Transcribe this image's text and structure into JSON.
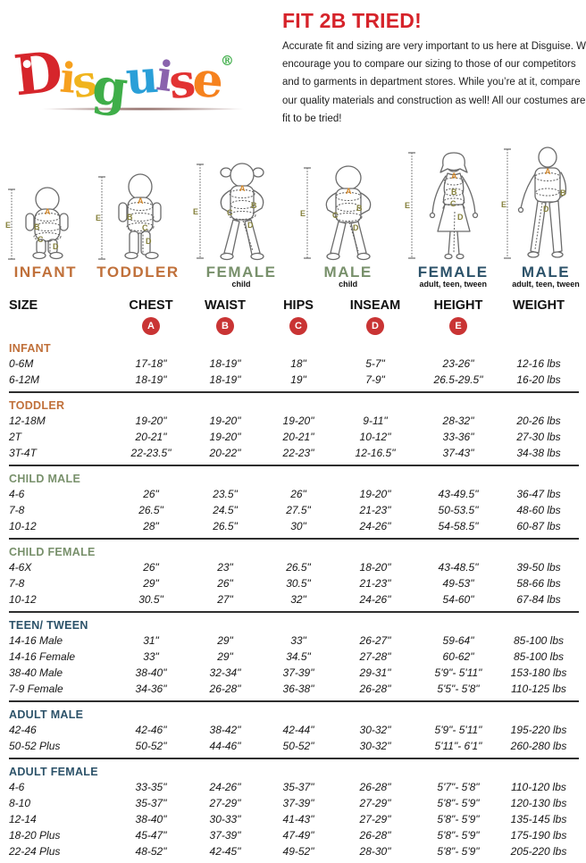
{
  "logo": {
    "letters": [
      {
        "ch": "D",
        "color": "#d6252b"
      },
      {
        "ch": "i",
        "color": "#f6a01e"
      },
      {
        "ch": "s",
        "color": "#f0b41e"
      },
      {
        "ch": "g",
        "color": "#3fae49"
      },
      {
        "ch": "u",
        "color": "#2a9fd8"
      },
      {
        "ch": "i",
        "color": "#8a63ad"
      },
      {
        "ch": "s",
        "color": "#e23333"
      },
      {
        "ch": "e",
        "color": "#f6821e"
      },
      {
        "ch": "®",
        "color": "#3fae49"
      }
    ]
  },
  "intro": {
    "title": "FIT 2B TRIED!",
    "body": "Accurate fit and sizing are very important to us here at Disguise. We encourage you to compare our sizing to those of our competitors and to garments in department stores. While you’re at it, compare our quality materials and construction as well! All our costumes are fit to be tried!"
  },
  "figure_marks": {
    "a": "A",
    "b": "B",
    "c": "C",
    "d": "D",
    "e": "E"
  },
  "figures": [
    {
      "label": "INFANT",
      "sublabel": "",
      "label_color": "#c0703a"
    },
    {
      "label": "TODDLER",
      "sublabel": "",
      "label_color": "#c0703a"
    },
    {
      "label": "FEMALE",
      "sublabel": "child",
      "label_color": "#78906b"
    },
    {
      "label": "MALE",
      "sublabel": "child",
      "label_color": "#78906b"
    },
    {
      "label": "FEMALE",
      "sublabel": "adult, teen, tween",
      "label_color": "#2c5269"
    },
    {
      "label": "MALE",
      "sublabel": "adult, teen, tween",
      "label_color": "#2c5269"
    }
  ],
  "table": {
    "columns": [
      "SIZE",
      "CHEST",
      "WAIST",
      "HIPS",
      "INSEAM",
      "HEIGHT",
      "WEIGHT"
    ],
    "badges": [
      "A",
      "B",
      "C",
      "D",
      "E"
    ],
    "badge_color": "#c93434",
    "sections": [
      {
        "name": "INFANT",
        "color": "#c0703a",
        "rows": [
          {
            "size": "0-6M",
            "values": [
              "17-18\"",
              "18-19\"",
              "18\"",
              "5-7\"",
              "23-26\"",
              "12-16 lbs"
            ]
          },
          {
            "size": "6-12M",
            "values": [
              "18-19\"",
              "18-19\"",
              "19\"",
              "7-9\"",
              "26.5-29.5\"",
              "16-20 lbs"
            ]
          }
        ]
      },
      {
        "name": "TODDLER",
        "color": "#c0703a",
        "rows": [
          {
            "size": "12-18M",
            "values": [
              "19-20\"",
              "19-20\"",
              "19-20\"",
              "9-11\"",
              "28-32\"",
              "20-26 lbs"
            ]
          },
          {
            "size": "2T",
            "values": [
              "20-21\"",
              "19-20\"",
              "20-21\"",
              "10-12\"",
              "33-36\"",
              "27-30 lbs"
            ]
          },
          {
            "size": "3T-4T",
            "values": [
              "22-23.5\"",
              "20-22\"",
              "22-23\"",
              "12-16.5\"",
              "37-43\"",
              "34-38 lbs"
            ]
          }
        ]
      },
      {
        "name": "CHILD MALE",
        "color": "#78906b",
        "rows": [
          {
            "size": "4-6",
            "values": [
              "26\"",
              "23.5\"",
              "26\"",
              "19-20\"",
              "43-49.5\"",
              "36-47 lbs"
            ]
          },
          {
            "size": "7-8",
            "values": [
              "26.5\"",
              "24.5\"",
              "27.5\"",
              "21-23\"",
              "50-53.5\"",
              "48-60 lbs"
            ]
          },
          {
            "size": "10-12",
            "values": [
              "28\"",
              "26.5\"",
              "30\"",
              "24-26\"",
              "54-58.5\"",
              "60-87 lbs"
            ]
          }
        ]
      },
      {
        "name": "CHILD FEMALE",
        "color": "#78906b",
        "rows": [
          {
            "size": "4-6X",
            "values": [
              "26\"",
              "23\"",
              "26.5\"",
              "18-20\"",
              "43-48.5\"",
              "39-50 lbs"
            ]
          },
          {
            "size": "7-8",
            "values": [
              "29\"",
              "26\"",
              "30.5\"",
              "21-23\"",
              "49-53\"",
              "58-66 lbs"
            ]
          },
          {
            "size": "10-12",
            "values": [
              "30.5\"",
              "27\"",
              "32\"",
              "24-26\"",
              "54-60\"",
              "67-84 lbs"
            ]
          }
        ]
      },
      {
        "name": "TEEN/ TWEEN",
        "color": "#2c5269",
        "rows": [
          {
            "size": "14-16 Male",
            "values": [
              "31\"",
              "29\"",
              "33\"",
              "26-27\"",
              "59-64\"",
              "85-100 lbs"
            ]
          },
          {
            "size": "14-16 Female",
            "values": [
              "33\"",
              "29\"",
              "34.5\"",
              "27-28\"",
              "60-62\"",
              "85-100 lbs"
            ]
          },
          {
            "size": "38-40 Male",
            "values": [
              "38-40\"",
              "32-34\"",
              "37-39\"",
              "29-31\"",
              "5'9\"- 5'11\"",
              "153-180 lbs"
            ]
          },
          {
            "size": "7-9 Female",
            "values": [
              "34-36\"",
              "26-28\"",
              "36-38\"",
              "26-28\"",
              "5'5\"- 5'8\"",
              "110-125 lbs"
            ]
          }
        ]
      },
      {
        "name": "ADULT MALE",
        "color": "#2c5269",
        "rows": [
          {
            "size": "42-46",
            "values": [
              "42-46\"",
              "38-42\"",
              "42-44\"",
              "30-32\"",
              "5'9\"- 5'11\"",
              "195-220 lbs"
            ]
          },
          {
            "size": "50-52 Plus",
            "values": [
              "50-52\"",
              "44-46\"",
              "50-52\"",
              "30-32\"",
              "5'11\"- 6'1\"",
              "260-280 lbs"
            ]
          }
        ]
      },
      {
        "name": "ADULT FEMALE",
        "color": "#2c5269",
        "rows": [
          {
            "size": "4-6",
            "values": [
              "33-35\"",
              "24-26\"",
              "35-37\"",
              "26-28\"",
              "5'7\"- 5'8\"",
              "110-120 lbs"
            ]
          },
          {
            "size": "8-10",
            "values": [
              "35-37\"",
              "27-29\"",
              "37-39\"",
              "27-29\"",
              "5'8\"- 5'9\"",
              "120-130 lbs"
            ]
          },
          {
            "size": "12-14",
            "values": [
              "38-40\"",
              "30-33\"",
              "41-43\"",
              "27-29\"",
              "5'8\"- 5'9\"",
              "135-145 lbs"
            ]
          },
          {
            "size": "18-20 Plus",
            "values": [
              "45-47\"",
              "37-39\"",
              "47-49\"",
              "26-28\"",
              "5'8\"- 5'9\"",
              "175-190 lbs"
            ]
          },
          {
            "size": "22-24 Plus",
            "values": [
              "48-52\"",
              "42-45\"",
              "49-52\"",
              "28-30\"",
              "5'8\"- 5'9\"",
              "205-220 lbs"
            ]
          }
        ]
      }
    ]
  }
}
